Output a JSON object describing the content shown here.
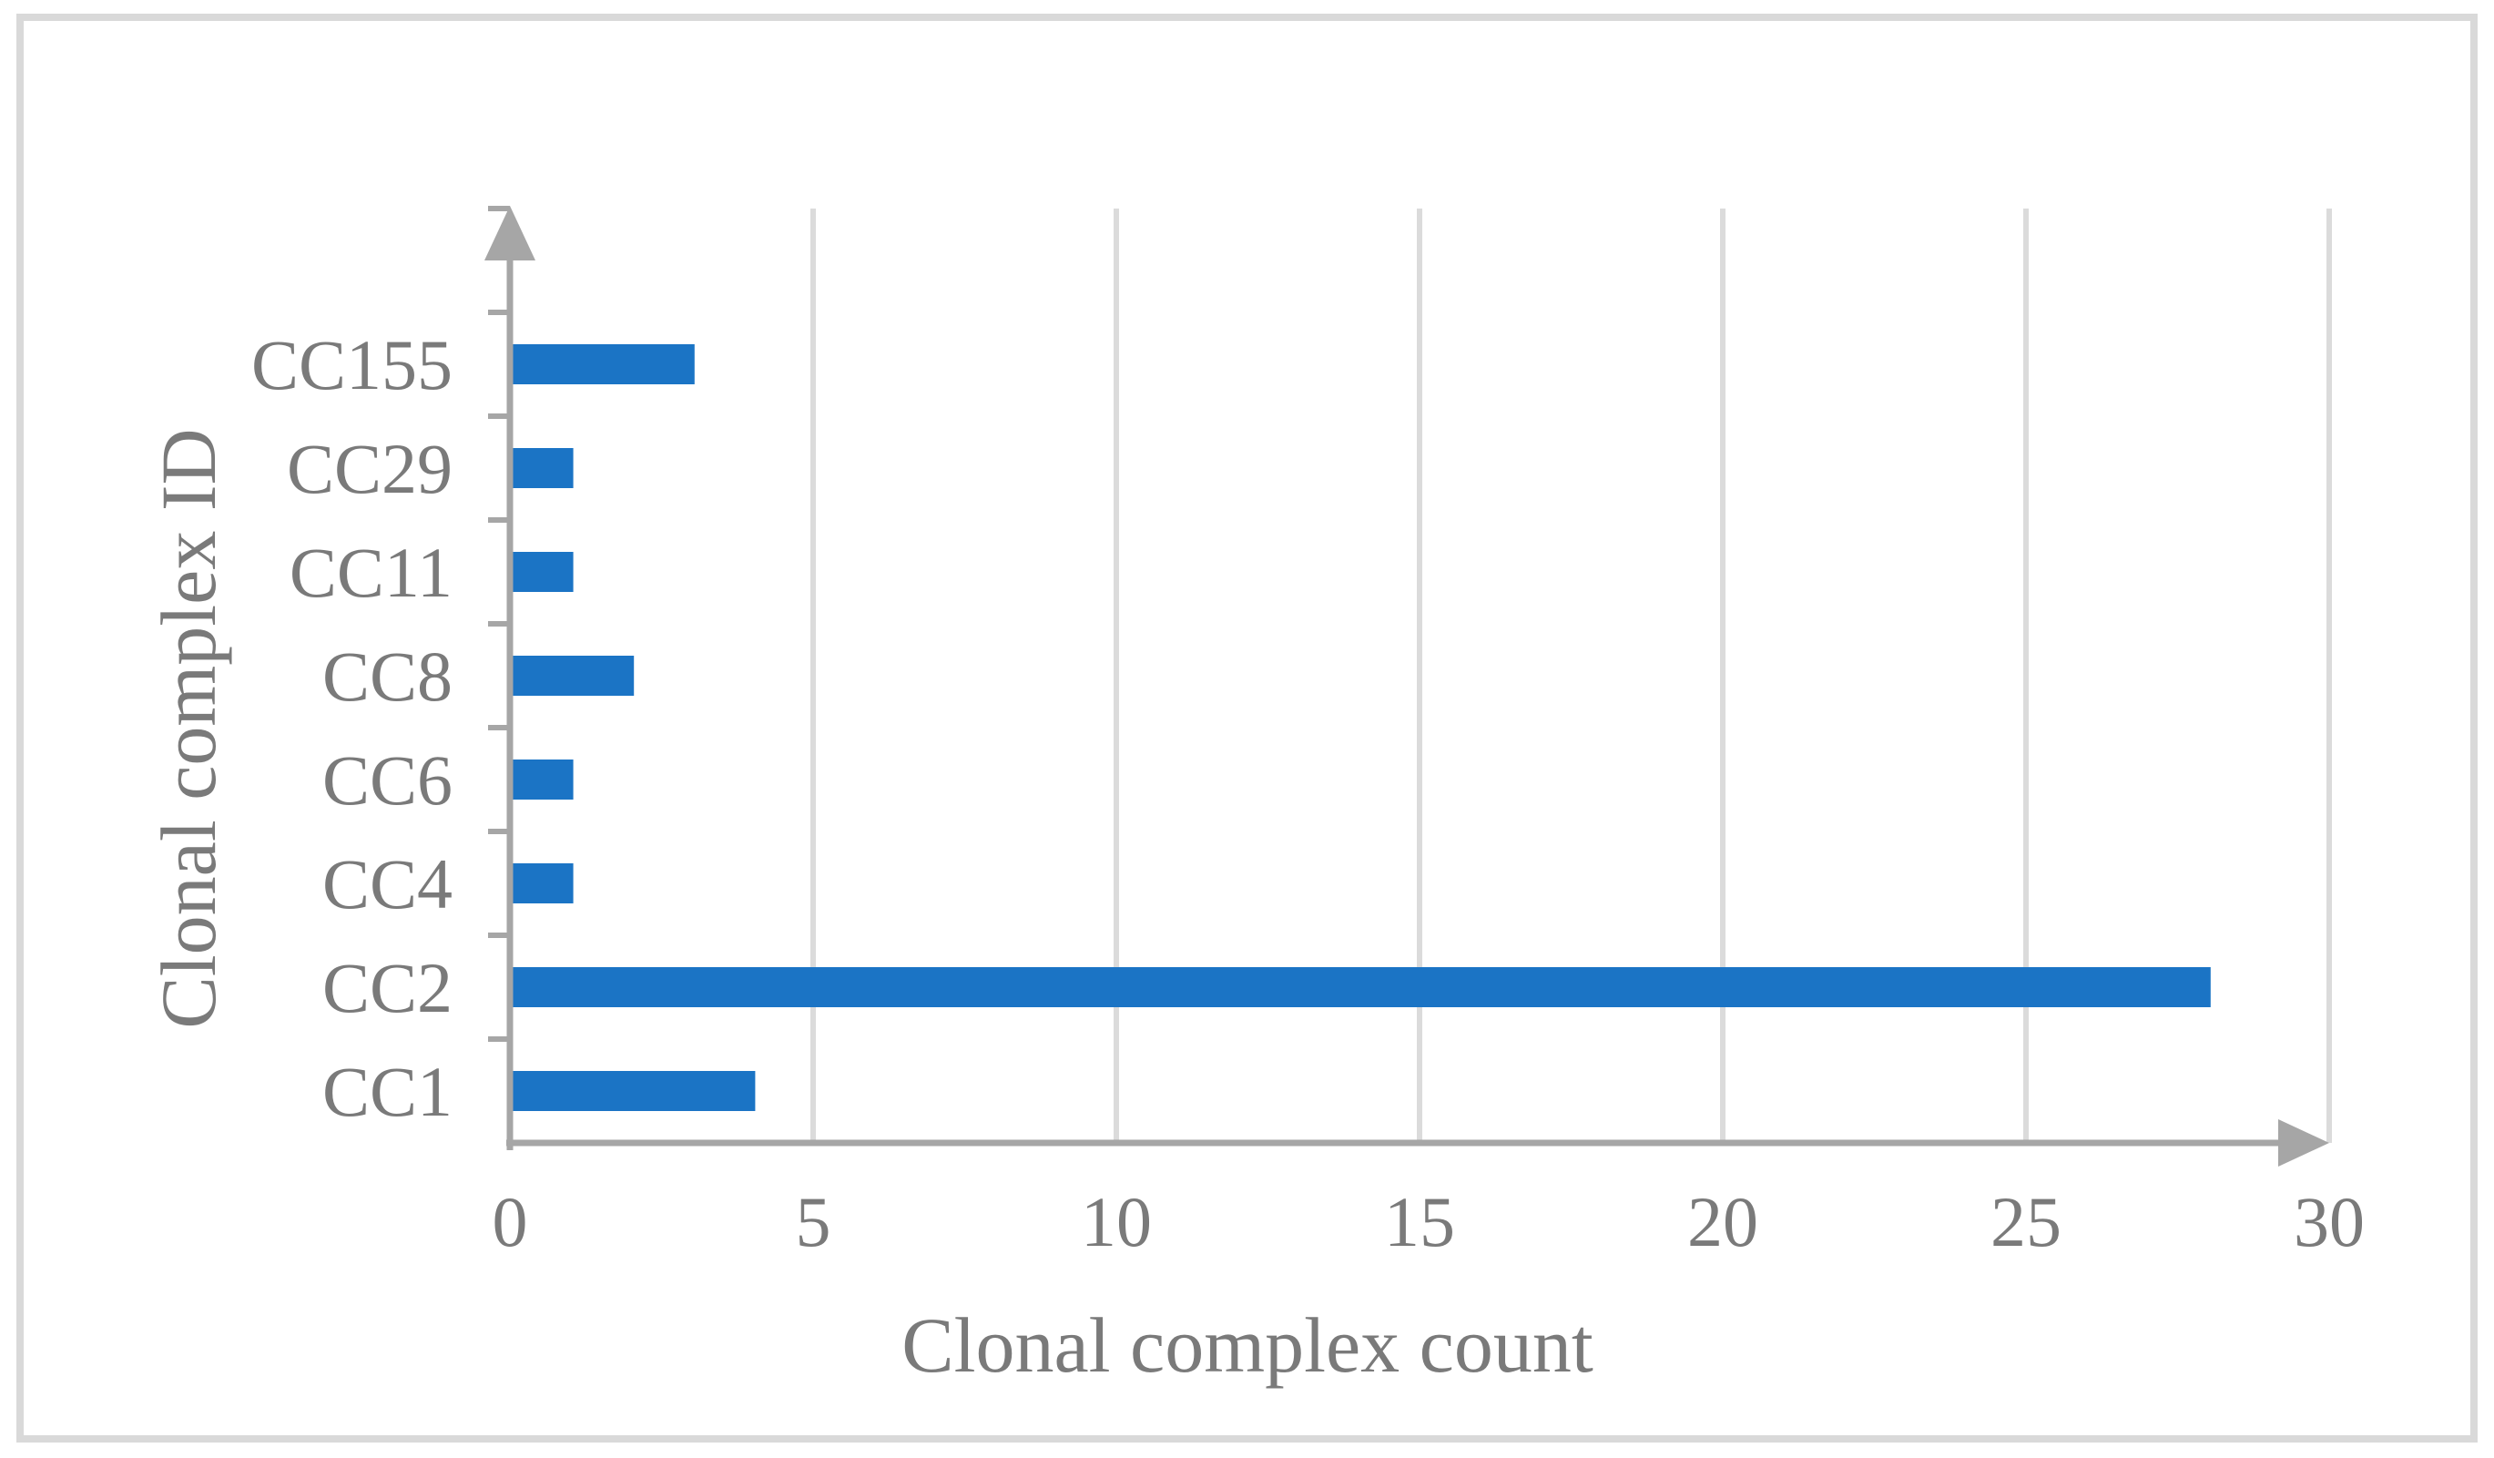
{
  "page": {
    "background": "#FFFFFF",
    "frame_color": "#D9D9D9"
  },
  "chart_data": {
    "type": "bar",
    "orientation": "horizontal",
    "title": "",
    "xlabel": "Clonal complex count",
    "ylabel": "Clonal complex ID",
    "categories": [
      "CC155",
      "CC29",
      "CC11",
      "CC8",
      "CC6",
      "CC4",
      "CC2",
      "CC1"
    ],
    "categories_order": "top-to-bottom",
    "values": [
      3,
      1,
      1,
      2,
      1,
      1,
      28,
      4
    ],
    "xlim": [
      0,
      30
    ],
    "xticks": [
      0,
      5,
      10,
      15,
      20,
      25,
      30
    ],
    "grid": "vertical major gridlines",
    "legend_position": "none",
    "axis_arrows": "both axes end in arrowheads",
    "colors": {
      "bar": "#1B74C5",
      "axis": "#A6A6A6",
      "gridline": "#DBDBDB",
      "text": "#7A7A7A"
    }
  }
}
